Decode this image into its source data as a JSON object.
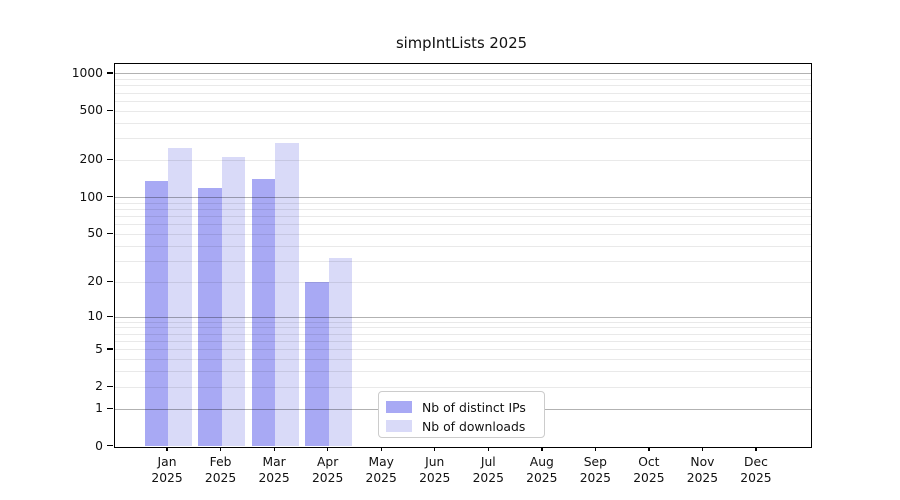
{
  "chart_data": {
    "type": "bar",
    "title": "simpIntLists 2025",
    "categories": [
      "Jan",
      "Feb",
      "Mar",
      "Apr",
      "May",
      "Jun",
      "Jul",
      "Aug",
      "Sep",
      "Oct",
      "Nov",
      "Dec"
    ],
    "x_year_label": "2025",
    "series": [
      {
        "name": "Nb of distinct IPs",
        "color": "#a8a9f4",
        "values": [
          137,
          120,
          142,
          20,
          null,
          null,
          null,
          null,
          null,
          null,
          null,
          null
        ]
      },
      {
        "name": "Nb of downloads",
        "color": "#d9daf8",
        "values": [
          253,
          214,
          275,
          32,
          null,
          null,
          null,
          null,
          null,
          null,
          null,
          null
        ]
      }
    ],
    "yscale": "log1p",
    "ylim": [
      0,
      1200
    ],
    "ytick_values": [
      0,
      1,
      2,
      5,
      10,
      20,
      50,
      100,
      200,
      500,
      1000
    ],
    "grid": {
      "major_values": [
        1,
        10,
        100,
        1000
      ],
      "minor_values": [
        2,
        3,
        4,
        5,
        6,
        7,
        8,
        9,
        20,
        30,
        40,
        50,
        60,
        70,
        80,
        90,
        200,
        300,
        400,
        500,
        600,
        700,
        800,
        900
      ]
    },
    "legend": {
      "position": "lower-center",
      "entries": [
        "Nb of distinct IPs",
        "Nb of downloads"
      ]
    },
    "colors": {
      "spine": "#000000",
      "major_grid": "#b3b3b3",
      "minor_grid": "#eaeaea",
      "legend_border": "#cccccc"
    }
  }
}
